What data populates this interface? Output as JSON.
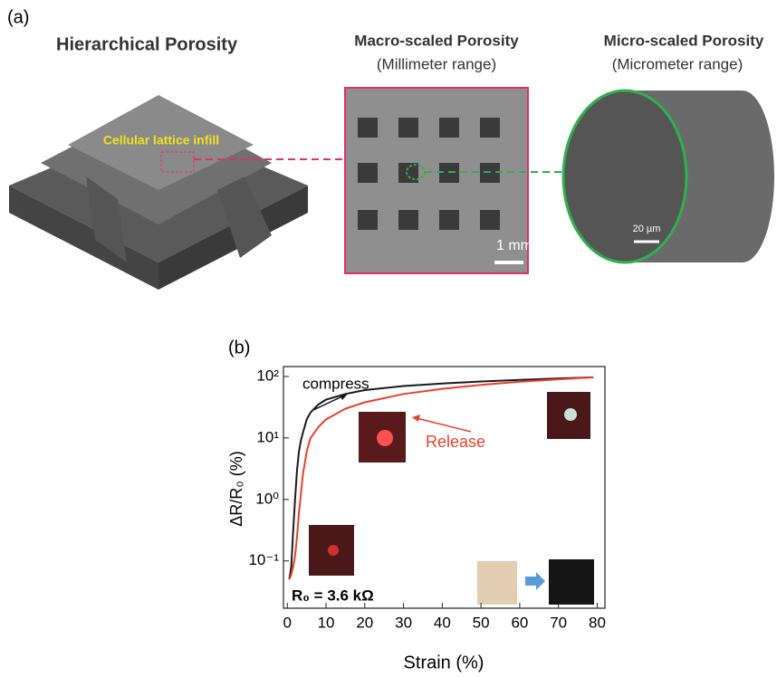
{
  "panel_a": {
    "label": "(a)",
    "title_left": "Hierarchical  Porosity",
    "title_mid": "Macro-scaled Porosity",
    "subtitle_mid": "(Millimeter range)",
    "title_right": "Micro-scaled Porosity",
    "subtitle_right": "(Micrometer range)",
    "infill_label": "Cellular lattice infill",
    "scale_mid": "1 mm",
    "scale_right": "20 µm"
  },
  "panel_b_label": "(b)",
  "chart_data": {
    "type": "line",
    "x_label": "Strain (%)",
    "y_label": "ΔR/R₀ (%)",
    "annotations": [
      "compress",
      "Release",
      "R₀ = 3.6 kΩ"
    ],
    "x": [
      0.5,
      1,
      1.5,
      2,
      2.5,
      3,
      3.5,
      4,
      5,
      6,
      8,
      10,
      15,
      20,
      30,
      40,
      50,
      60,
      70,
      79
    ],
    "series": [
      {
        "name": "compress",
        "color": "#1a1a1a",
        "values": [
          0.05,
          0.08,
          0.3,
          1,
          3,
          6,
          9,
          12,
          20,
          26,
          35,
          42,
          52,
          60,
          70,
          77,
          83,
          88,
          93,
          97
        ]
      },
      {
        "name": "Release",
        "color": "#e8412c",
        "values": [
          0.05,
          0.06,
          0.08,
          0.12,
          0.25,
          0.6,
          1.2,
          2.5,
          6,
          10,
          15,
          20,
          30,
          38,
          52,
          63,
          73,
          82,
          90,
          97
        ]
      }
    ],
    "xlim": [
      -1,
      82
    ],
    "xticks": [
      0,
      10,
      20,
      30,
      40,
      50,
      60,
      70,
      80
    ],
    "ylim": [
      0.017,
      145
    ],
    "log_y": true,
    "yticks": [
      {
        "value": 0.1,
        "label": "10⁻¹"
      },
      {
        "value": 1,
        "label": "10⁰"
      },
      {
        "value": 10,
        "label": "10¹"
      },
      {
        "value": 100,
        "label": "10²"
      }
    ]
  }
}
